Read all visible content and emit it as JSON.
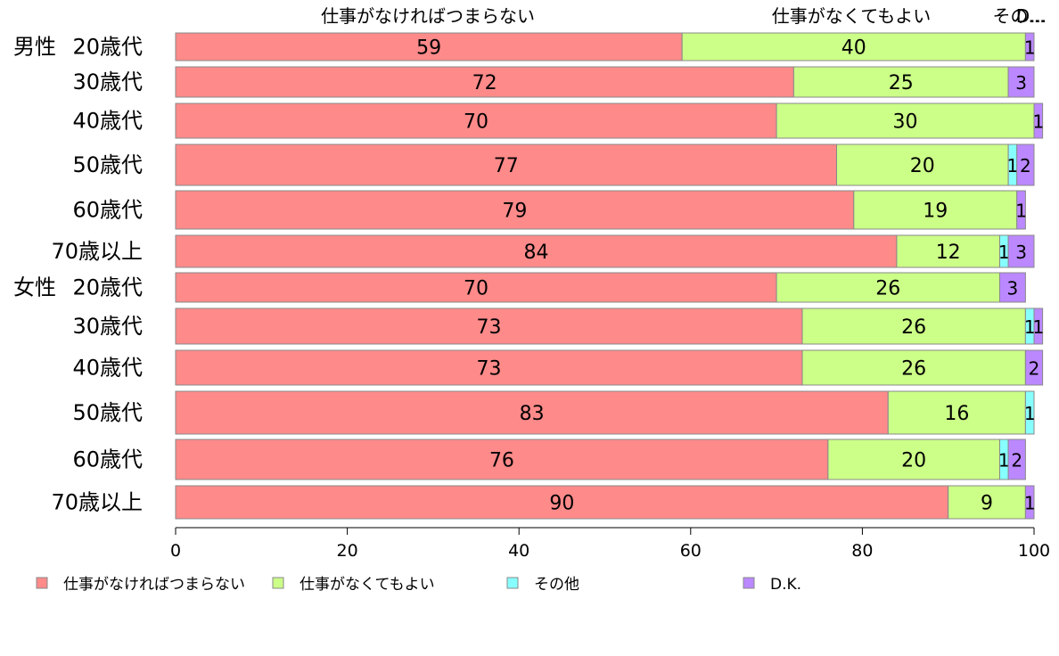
{
  "chart_data": {
    "type": "bar",
    "orientation": "horizontal",
    "stacked": true,
    "xlim": [
      0,
      100
    ],
    "x_ticks": [
      0,
      20,
      40,
      60,
      80,
      100
    ],
    "x_tick_labels": [
      "0",
      "20",
      "40",
      "60",
      "80",
      "100"
    ],
    "grid": false,
    "legend_position": "bottom",
    "top_labels": [
      "仕事がなければつまらない",
      "仕事がなくてもよい",
      "その...",
      "D..."
    ],
    "categories": [
      {
        "group": "男性",
        "label": "20歳代"
      },
      {
        "group": "",
        "label": "30歳代"
      },
      {
        "group": "",
        "label": "40歳代"
      },
      {
        "group": "",
        "label": "50歳代"
      },
      {
        "group": "",
        "label": "60歳代"
      },
      {
        "group": "",
        "label": "70歳以上"
      },
      {
        "group": "女性",
        "label": "20歳代"
      },
      {
        "group": "",
        "label": "30歳代"
      },
      {
        "group": "",
        "label": "40歳代"
      },
      {
        "group": "",
        "label": "50歳代"
      },
      {
        "group": "",
        "label": "60歳代"
      },
      {
        "group": "",
        "label": "70歳以上"
      }
    ],
    "series": [
      {
        "name": "仕事がなければつまらない",
        "color": "#fe8a8a",
        "values": [
          59,
          72,
          70,
          77,
          79,
          84,
          70,
          73,
          73,
          83,
          76,
          90
        ]
      },
      {
        "name": "仕事がなくてもよい",
        "color": "#ccff88",
        "values": [
          40,
          25,
          30,
          20,
          19,
          12,
          26,
          26,
          26,
          16,
          20,
          9
        ]
      },
      {
        "name": "その他",
        "color": "#88ffff",
        "values": [
          0,
          0,
          0,
          1,
          0,
          1,
          0,
          1,
          0,
          1,
          1,
          0
        ]
      },
      {
        "name": "D.K.",
        "color": "#bb88ff",
        "values": [
          1,
          3,
          1,
          2,
          1,
          3,
          3,
          1,
          2,
          0,
          2,
          1
        ]
      }
    ]
  }
}
